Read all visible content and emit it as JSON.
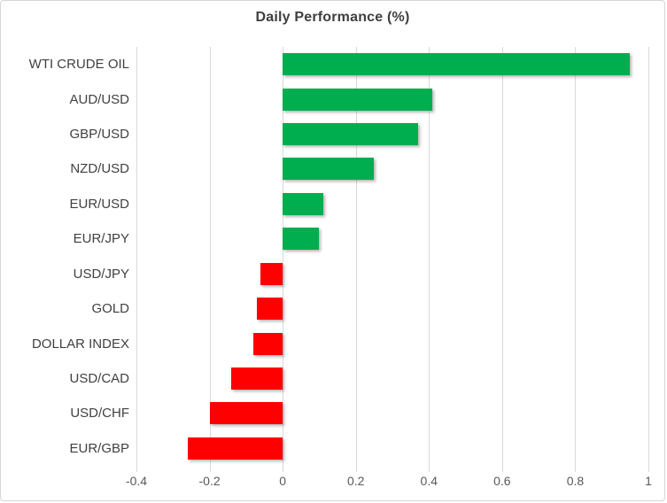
{
  "chart": {
    "title": "Daily Performance (%)",
    "colors": {
      "positive": "#00AE4F",
      "negative": "#FF0000",
      "gridline": "#D9D9D9",
      "title_text": "#3F3F3F",
      "category_text": "#404040",
      "tick_text": "#595959",
      "frame_border": "#D6D6D6",
      "background": "#FFFFFF"
    }
  },
  "chart_data": {
    "type": "bar",
    "orientation": "horizontal",
    "title": "Daily Performance (%)",
    "categories": [
      "WTI CRUDE OIL",
      "AUD/USD",
      "GBP/USD",
      "NZD/USD",
      "EUR/USD",
      "EUR/JPY",
      "USD/JPY",
      "GOLD",
      "DOLLAR INDEX",
      "USD/CAD",
      "USD/CHF",
      "EUR/GBP"
    ],
    "values": [
      0.95,
      0.41,
      0.37,
      0.25,
      0.11,
      0.1,
      -0.06,
      -0.07,
      -0.08,
      -0.14,
      -0.2,
      -0.26
    ],
    "xlabel": "",
    "ylabel": "",
    "xlim": [
      -0.4,
      1.0
    ],
    "xticks": [
      -0.4,
      -0.2,
      0,
      0.2,
      0.4,
      0.6,
      0.8,
      1
    ],
    "xtick_labels": [
      "-0.4",
      "-0.2",
      "0",
      "0.2",
      "0.4",
      "0.6",
      "0.8",
      "1"
    ],
    "grid": true,
    "legend": "none",
    "positive_color": "#00AE4F",
    "negative_color": "#FF0000",
    "bar_shadow": true
  }
}
